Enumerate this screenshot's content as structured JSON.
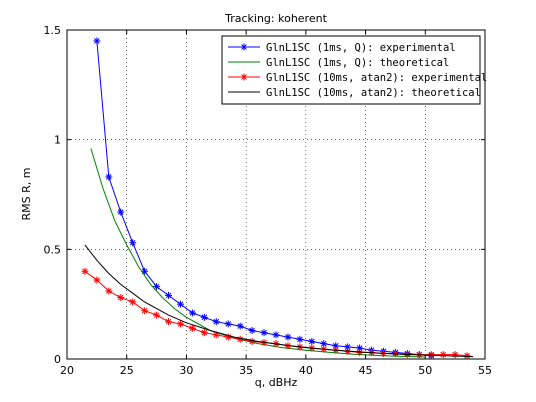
{
  "chart_data": {
    "type": "line",
    "title": "Tracking: koherent",
    "xlabel": "q, dBHz",
    "ylabel": "RMS R, m",
    "xlim": [
      20,
      55
    ],
    "ylim": [
      0,
      1.5
    ],
    "xticks": [
      "20",
      "25",
      "30",
      "35",
      "40",
      "45",
      "50",
      "55"
    ],
    "yticks": [
      "0",
      "0.5",
      "1",
      "1.5"
    ],
    "grid": true,
    "legend_position": "top-right",
    "series": [
      {
        "name": "GlnL1SC (1ms, Q): experimental",
        "color": "#0000ff",
        "marker": "star",
        "x": [
          22.5,
          23.5,
          24.5,
          25.5,
          26.5,
          27.5,
          28.5,
          29.5,
          30.5,
          31.5,
          32.5,
          33.5,
          34.5,
          35.5,
          36.5,
          37.5,
          38.5,
          39.5,
          40.5,
          41.5,
          42.5,
          43.5,
          44.5,
          45.5,
          46.5,
          47.5,
          48.5,
          49.5,
          50.5
        ],
        "y": [
          1.45,
          0.83,
          0.67,
          0.53,
          0.4,
          0.33,
          0.29,
          0.25,
          0.21,
          0.19,
          0.17,
          0.16,
          0.15,
          0.13,
          0.12,
          0.11,
          0.1,
          0.09,
          0.08,
          0.07,
          0.06,
          0.055,
          0.05,
          0.04,
          0.035,
          0.03,
          0.025,
          0.02,
          0.015
        ]
      },
      {
        "name": "GlnL1SC (1ms, Q): theoretical",
        "color": "#008000",
        "marker": "none",
        "x": [
          22,
          23,
          24,
          25,
          26,
          27,
          28,
          29,
          30,
          32,
          34,
          36,
          38,
          40,
          42,
          44,
          46,
          48,
          50
        ],
        "y": [
          0.96,
          0.78,
          0.63,
          0.52,
          0.42,
          0.34,
          0.28,
          0.23,
          0.19,
          0.13,
          0.095,
          0.07,
          0.052,
          0.04,
          0.03,
          0.022,
          0.016,
          0.012,
          0.009
        ]
      },
      {
        "name": "GlnL1SC (10ms, atan2): experimental",
        "color": "#ff0000",
        "marker": "star",
        "x": [
          21.5,
          22.5,
          23.5,
          24.5,
          25.5,
          26.5,
          27.5,
          28.5,
          29.5,
          30.5,
          31.5,
          32.5,
          33.5,
          34.5,
          35.5,
          36.5,
          37.5,
          38.5,
          39.5,
          40.5,
          41.5,
          42.5,
          43.5,
          44.5,
          45.5,
          46.5,
          47.5,
          48.5,
          49.5,
          50.5,
          51.5,
          52.5,
          53.5
        ],
        "y": [
          0.4,
          0.36,
          0.31,
          0.28,
          0.26,
          0.22,
          0.2,
          0.17,
          0.16,
          0.14,
          0.12,
          0.11,
          0.1,
          0.09,
          0.08,
          0.075,
          0.07,
          0.06,
          0.055,
          0.05,
          0.045,
          0.04,
          0.035,
          0.03,
          0.03,
          0.025,
          0.025,
          0.02,
          0.02,
          0.02,
          0.02,
          0.02,
          0.015
        ]
      },
      {
        "name": "GlnL1SC (10ms, atan2): theoretical",
        "color": "#000000",
        "marker": "none",
        "x": [
          21.5,
          22.5,
          23.5,
          24.5,
          25.5,
          26.5,
          27.5,
          28.5,
          30,
          32,
          34,
          36,
          38,
          40,
          42,
          44,
          46,
          48,
          50,
          52,
          54
        ],
        "y": [
          0.52,
          0.45,
          0.39,
          0.34,
          0.3,
          0.26,
          0.23,
          0.2,
          0.165,
          0.13,
          0.1,
          0.08,
          0.065,
          0.052,
          0.042,
          0.034,
          0.027,
          0.022,
          0.018,
          0.014,
          0.011
        ]
      }
    ]
  }
}
